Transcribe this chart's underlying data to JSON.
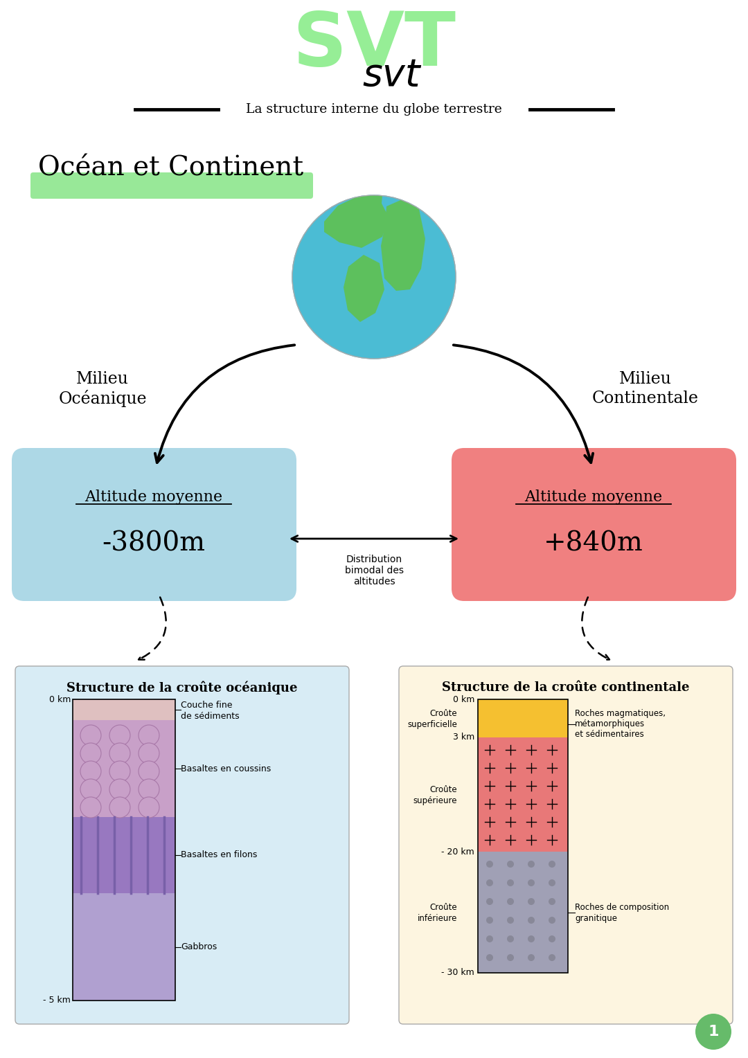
{
  "bg_color": "#FFFFFF",
  "svt_green": "#90EE90",
  "subtitle": "La structure interne du globe terrestre",
  "section_title": "Océan et Continent",
  "highlight_color": "#98E898",
  "left_label_line1": "Milieu",
  "left_label_line2": "Océanique",
  "right_label_line1": "Milieu",
  "right_label_line2": "Continentale",
  "left_box_color": "#ADD8E6",
  "right_box_color": "#F08080",
  "left_box_title": "Altitude moyenne",
  "right_box_title": "Altitude moyenne",
  "left_box_value": "-3800m",
  "right_box_value": "+840m",
  "arrow_label1": "Distribution",
  "arrow_label2": "bimodal des",
  "arrow_label3": "altitudes",
  "left_diagram_title": "Structure de la croûte océanique",
  "right_diagram_title": "Structure de la croûte continentale",
  "earth_blue": "#4BBCD4",
  "earth_green": "#5DC05D",
  "page_number": "1",
  "page_circle_color": "#66BB6A",
  "left_diagram_bg": "#D8ECF5",
  "right_diagram_bg": "#FDF5E0",
  "sed_color": "#DFC0C0",
  "pillow_color": "#C8A0C8",
  "pillow_edge": "#A878A8",
  "dike_color": "#9878C0",
  "dike_line": "#7860A8",
  "gabbro_color": "#B0A0D0",
  "top_layer_color": "#F5C030",
  "upper_crust_color": "#E87878",
  "lower_crust_color": "#A0A0B5",
  "lower_crust_dot": "#888898"
}
